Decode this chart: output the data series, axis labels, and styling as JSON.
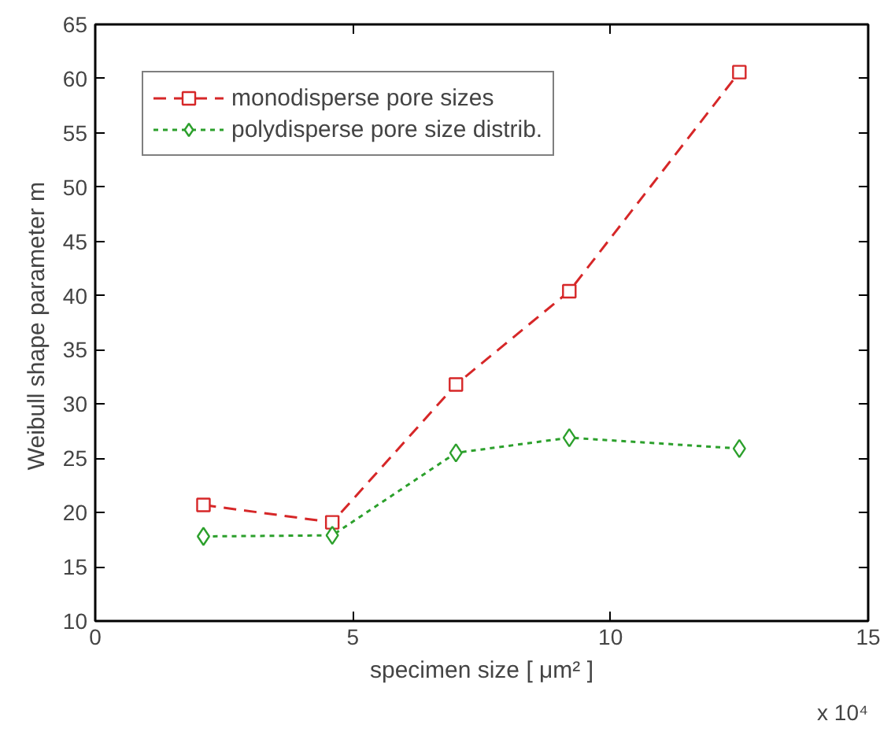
{
  "chart_data": {
    "type": "line",
    "xlabel": "specimen size [ μm² ]",
    "ylabel": "Weibull shape parameter  m",
    "x": [
      2.1,
      4.6,
      7.0,
      9.2,
      12.5
    ],
    "series": [
      {
        "name": "monodisperse pore sizes",
        "color": "#d62728",
        "values": [
          20.7,
          19.1,
          31.8,
          40.4,
          60.6
        ],
        "marker": "square",
        "line_style": "dashed"
      },
      {
        "name": "polydisperse pore size distrib.",
        "color": "#2ca02c",
        "values": [
          17.8,
          17.9,
          25.5,
          26.9,
          25.9
        ],
        "marker": "diamond",
        "line_style": "dotted"
      }
    ],
    "xlim": [
      0,
      15
    ],
    "xticks": [
      0,
      5,
      10,
      15
    ],
    "ylim": [
      10,
      65
    ],
    "yticks": [
      10,
      15,
      20,
      25,
      30,
      35,
      40,
      45,
      50,
      55,
      60,
      65
    ],
    "annotations": [
      "x 10⁴"
    ],
    "grid": false,
    "legend": "top left"
  }
}
